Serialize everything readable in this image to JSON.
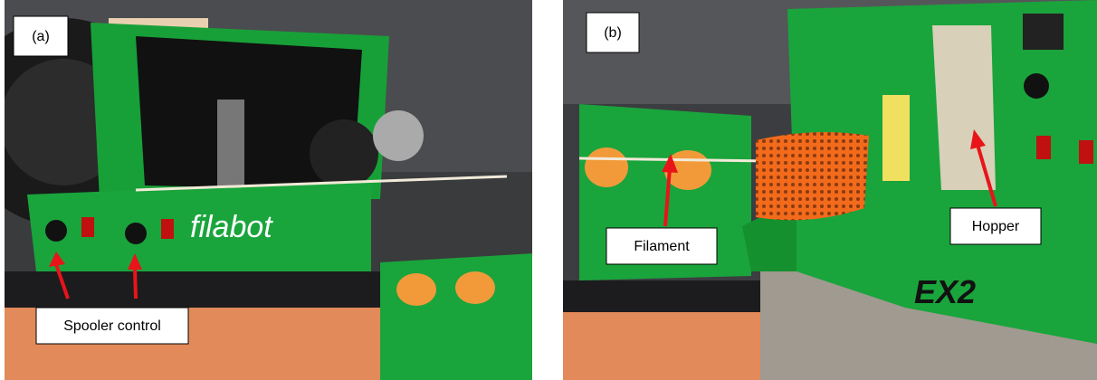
{
  "panels": [
    {
      "label": "(a)",
      "callout": "Spooler control",
      "brand": "filabot"
    },
    {
      "label": "(b)",
      "callouts": [
        "Filament",
        "Hopper"
      ],
      "brand": "EX2"
    }
  ]
}
